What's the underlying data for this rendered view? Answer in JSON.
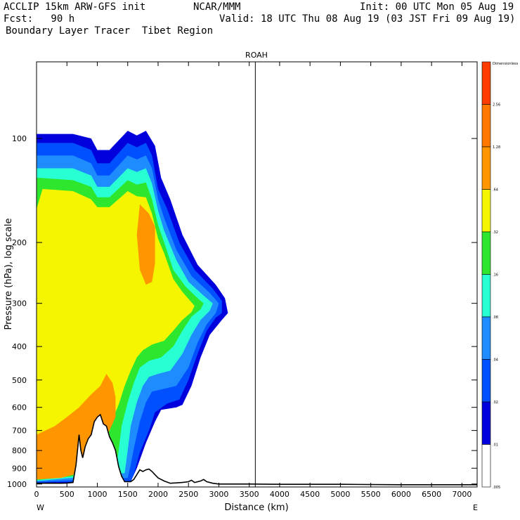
{
  "header": {
    "model": "ACCLIP 15km ARW-GFS init",
    "org": "NCAR/MMM",
    "init": "Init: 00 UTC Mon 05 Aug 19",
    "fcst": "Fcst:   90 h",
    "valid": "Valid: 18 UTC Thu 08 Aug 19 (03 JST Fri 09 Aug 19)",
    "product": "Boundary Layer Tracer  Tibet Region"
  },
  "chart_data": {
    "type": "heatmap",
    "title": "ROAH",
    "xlabel": "Distance (km)",
    "ylabel": "Pressure (hPa), log scale",
    "x_ticks": [
      0,
      500,
      1000,
      1500,
      2000,
      2500,
      3000,
      3500,
      4000,
      4500,
      5000,
      5500,
      6000,
      6500,
      7000
    ],
    "y_ticks": [
      100,
      200,
      300,
      400,
      500,
      600,
      700,
      800,
      900,
      1000
    ],
    "xlim": [
      0,
      7250
    ],
    "ylim_hpa": [
      60,
      1020
    ],
    "y_scale": "log",
    "x_end_labels": {
      "left": "W",
      "right": "E"
    },
    "vertical_marker_km": 3600,
    "colorbar": {
      "title": "Dimensionless",
      "levels": [
        "",
        "2.56",
        "1.28",
        ".64",
        ".32",
        ".16",
        ".08",
        ".04",
        ".02",
        ".01",
        ".005"
      ],
      "colors": [
        "#ff3c00",
        "#ff7800",
        "#ff9600",
        "#f5f500",
        "#2ee62e",
        "#28ffd2",
        "#1e8cff",
        "#0050ff",
        "#0000dc",
        "#ffffff"
      ]
    },
    "terrain_hpa": [
      [
        0,
        995
      ],
      [
        200,
        995
      ],
      [
        400,
        995
      ],
      [
        500,
        994
      ],
      [
        600,
        990
      ],
      [
        650,
        880
      ],
      [
        700,
        720
      ],
      [
        730,
        800
      ],
      [
        760,
        840
      ],
      [
        800,
        780
      ],
      [
        850,
        740
      ],
      [
        900,
        720
      ],
      [
        950,
        660
      ],
      [
        1000,
        640
      ],
      [
        1050,
        630
      ],
      [
        1100,
        670
      ],
      [
        1150,
        680
      ],
      [
        1200,
        730
      ],
      [
        1250,
        760
      ],
      [
        1300,
        800
      ],
      [
        1350,
        890
      ],
      [
        1400,
        950
      ],
      [
        1450,
        985
      ],
      [
        1500,
        985
      ],
      [
        1550,
        985
      ],
      [
        1600,
        970
      ],
      [
        1700,
        910
      ],
      [
        1750,
        920
      ],
      [
        1800,
        910
      ],
      [
        1850,
        905
      ],
      [
        1900,
        920
      ],
      [
        1950,
        940
      ],
      [
        2000,
        960
      ],
      [
        2100,
        980
      ],
      [
        2200,
        995
      ],
      [
        2400,
        990
      ],
      [
        2500,
        985
      ],
      [
        2550,
        975
      ],
      [
        2600,
        990
      ],
      [
        2700,
        980
      ],
      [
        2750,
        970
      ],
      [
        2800,
        985
      ],
      [
        2900,
        995
      ],
      [
        3000,
        1000
      ],
      [
        3500,
        1000
      ],
      [
        4000,
        1002
      ],
      [
        5000,
        1002
      ],
      [
        6000,
        1005
      ],
      [
        7250,
        1005
      ]
    ],
    "tracer_contours": [
      {
        "level": ".01",
        "color": "#0000dc",
        "outline": [
          [
            50,
            97
          ],
          [
            600,
            97
          ],
          [
            900,
            100
          ],
          [
            1000,
            108
          ],
          [
            1200,
            108
          ],
          [
            1500,
            95
          ],
          [
            1650,
            98
          ],
          [
            1800,
            95
          ],
          [
            1950,
            105
          ],
          [
            2050,
            130
          ],
          [
            2200,
            150
          ],
          [
            2400,
            190
          ],
          [
            2650,
            232
          ],
          [
            2950,
            265
          ],
          [
            3100,
            290
          ],
          [
            3150,
            320
          ],
          [
            3050,
            335
          ],
          [
            2850,
            370
          ],
          [
            2700,
            430
          ],
          [
            2550,
            520
          ],
          [
            2400,
            590
          ],
          [
            2300,
            600
          ],
          [
            2050,
            610
          ],
          [
            1950,
            660
          ],
          [
            1800,
            760
          ],
          [
            1650,
            900
          ],
          [
            1550,
            985
          ],
          [
            0,
            995
          ],
          [
            0,
            97
          ]
        ]
      },
      {
        "level": ".02",
        "color": "#0050ff",
        "outline": [
          [
            50,
            103
          ],
          [
            600,
            103
          ],
          [
            900,
            108
          ],
          [
            1000,
            118
          ],
          [
            1200,
            118
          ],
          [
            1500,
            103
          ],
          [
            1650,
            106
          ],
          [
            1800,
            103
          ],
          [
            1900,
            112
          ],
          [
            2000,
            140
          ],
          [
            2150,
            160
          ],
          [
            2350,
            200
          ],
          [
            2600,
            240
          ],
          [
            2900,
            272
          ],
          [
            3050,
            295
          ],
          [
            3050,
            320
          ],
          [
            2950,
            330
          ],
          [
            2800,
            360
          ],
          [
            2650,
            420
          ],
          [
            2500,
            500
          ],
          [
            2350,
            570
          ],
          [
            2150,
            585
          ],
          [
            1950,
            620
          ],
          [
            1850,
            700
          ],
          [
            1700,
            810
          ],
          [
            1600,
            940
          ],
          [
            1550,
            980
          ],
          [
            0,
            990
          ],
          [
            0,
            103
          ]
        ]
      },
      {
        "level": ".04",
        "color": "#1e8cff",
        "outline": [
          [
            50,
            112
          ],
          [
            600,
            112
          ],
          [
            900,
            118
          ],
          [
            1000,
            128
          ],
          [
            1200,
            128
          ],
          [
            1500,
            112
          ],
          [
            1650,
            115
          ],
          [
            1800,
            112
          ],
          [
            1900,
            122
          ],
          [
            2000,
            150
          ],
          [
            2100,
            170
          ],
          [
            2300,
            210
          ],
          [
            2550,
            250
          ],
          [
            2850,
            280
          ],
          [
            3000,
            300
          ],
          [
            2950,
            320
          ],
          [
            2800,
            345
          ],
          [
            2650,
            390
          ],
          [
            2500,
            460
          ],
          [
            2300,
            520
          ],
          [
            2100,
            530
          ],
          [
            1900,
            540
          ],
          [
            1800,
            580
          ],
          [
            1700,
            660
          ],
          [
            1600,
            790
          ],
          [
            1550,
            880
          ],
          [
            1500,
            960
          ],
          [
            0,
            985
          ],
          [
            0,
            112
          ]
        ]
      },
      {
        "level": ".08",
        "color": "#28ffd2",
        "outline": [
          [
            50,
            122
          ],
          [
            600,
            122
          ],
          [
            900,
            128
          ],
          [
            1000,
            138
          ],
          [
            1200,
            138
          ],
          [
            1500,
            122
          ],
          [
            1650,
            125
          ],
          [
            1800,
            122
          ],
          [
            1900,
            135
          ],
          [
            2000,
            162
          ],
          [
            2100,
            185
          ],
          [
            2300,
            225
          ],
          [
            2500,
            260
          ],
          [
            2750,
            285
          ],
          [
            2900,
            300
          ],
          [
            2850,
            315
          ],
          [
            2700,
            335
          ],
          [
            2550,
            370
          ],
          [
            2400,
            420
          ],
          [
            2200,
            470
          ],
          [
            2000,
            480
          ],
          [
            1850,
            490
          ],
          [
            1750,
            520
          ],
          [
            1650,
            580
          ],
          [
            1550,
            680
          ],
          [
            1500,
            800
          ],
          [
            1450,
            930
          ],
          [
            0,
            980
          ],
          [
            0,
            122
          ]
        ]
      },
      {
        "level": ".16",
        "color": "#2ee62e",
        "outline": [
          [
            50,
            130
          ],
          [
            600,
            132
          ],
          [
            900,
            138
          ],
          [
            1000,
            148
          ],
          [
            1200,
            148
          ],
          [
            1500,
            132
          ],
          [
            1650,
            136
          ],
          [
            1800,
            134
          ],
          [
            1900,
            150
          ],
          [
            2000,
            178
          ],
          [
            2100,
            200
          ],
          [
            2250,
            240
          ],
          [
            2450,
            268
          ],
          [
            2650,
            290
          ],
          [
            2750,
            300
          ],
          [
            2700,
            312
          ],
          [
            2550,
            328
          ],
          [
            2400,
            360
          ],
          [
            2250,
            400
          ],
          [
            2050,
            430
          ],
          [
            1850,
            440
          ],
          [
            1700,
            460
          ],
          [
            1600,
            510
          ],
          [
            1500,
            580
          ],
          [
            1400,
            680
          ],
          [
            1350,
            800
          ],
          [
            1300,
            920
          ],
          [
            0,
            975
          ],
          [
            0,
            130
          ]
        ]
      },
      {
        "level": ".32",
        "color": "#f5f500",
        "outline": [
          [
            100,
            140
          ],
          [
            600,
            142
          ],
          [
            900,
            150
          ],
          [
            1000,
            158
          ],
          [
            1200,
            158
          ],
          [
            1500,
            142
          ],
          [
            1650,
            147
          ],
          [
            1800,
            148
          ],
          [
            1900,
            165
          ],
          [
            2000,
            195
          ],
          [
            2100,
            215
          ],
          [
            2250,
            255
          ],
          [
            2400,
            278
          ],
          [
            2550,
            298
          ],
          [
            2600,
            305
          ],
          [
            2550,
            318
          ],
          [
            2400,
            335
          ],
          [
            2250,
            360
          ],
          [
            2100,
            385
          ],
          [
            1900,
            395
          ],
          [
            1750,
            410
          ],
          [
            1650,
            430
          ],
          [
            1550,
            470
          ],
          [
            1450,
            520
          ],
          [
            1350,
            590
          ],
          [
            1250,
            650
          ],
          [
            1150,
            720
          ],
          [
            1000,
            800
          ],
          [
            800,
            880
          ],
          [
            600,
            940
          ],
          [
            400,
            960
          ],
          [
            0,
            970
          ],
          [
            0,
            160
          ],
          [
            100,
            140
          ]
        ]
      },
      {
        "level": ".64",
        "color": "#ff9600",
        "outline": [
          [
            0,
            720
          ],
          [
            300,
            680
          ],
          [
            500,
            640
          ],
          [
            700,
            600
          ],
          [
            900,
            550
          ],
          [
            1050,
            520
          ],
          [
            1150,
            480
          ],
          [
            1250,
            510
          ],
          [
            1300,
            560
          ],
          [
            1300,
            640
          ],
          [
            1200,
            700
          ],
          [
            1100,
            750
          ],
          [
            1000,
            800
          ],
          [
            800,
            880
          ],
          [
            600,
            940
          ],
          [
            400,
            960
          ],
          [
            0,
            970
          ]
        ]
      },
      {
        "level": ".64",
        "color": "#ff9600",
        "outline": [
          [
            1700,
            155
          ],
          [
            1850,
            165
          ],
          [
            1950,
            180
          ],
          [
            1950,
            230
          ],
          [
            1900,
            260
          ],
          [
            1800,
            265
          ],
          [
            1700,
            240
          ],
          [
            1650,
            190
          ]
        ]
      }
    ]
  }
}
